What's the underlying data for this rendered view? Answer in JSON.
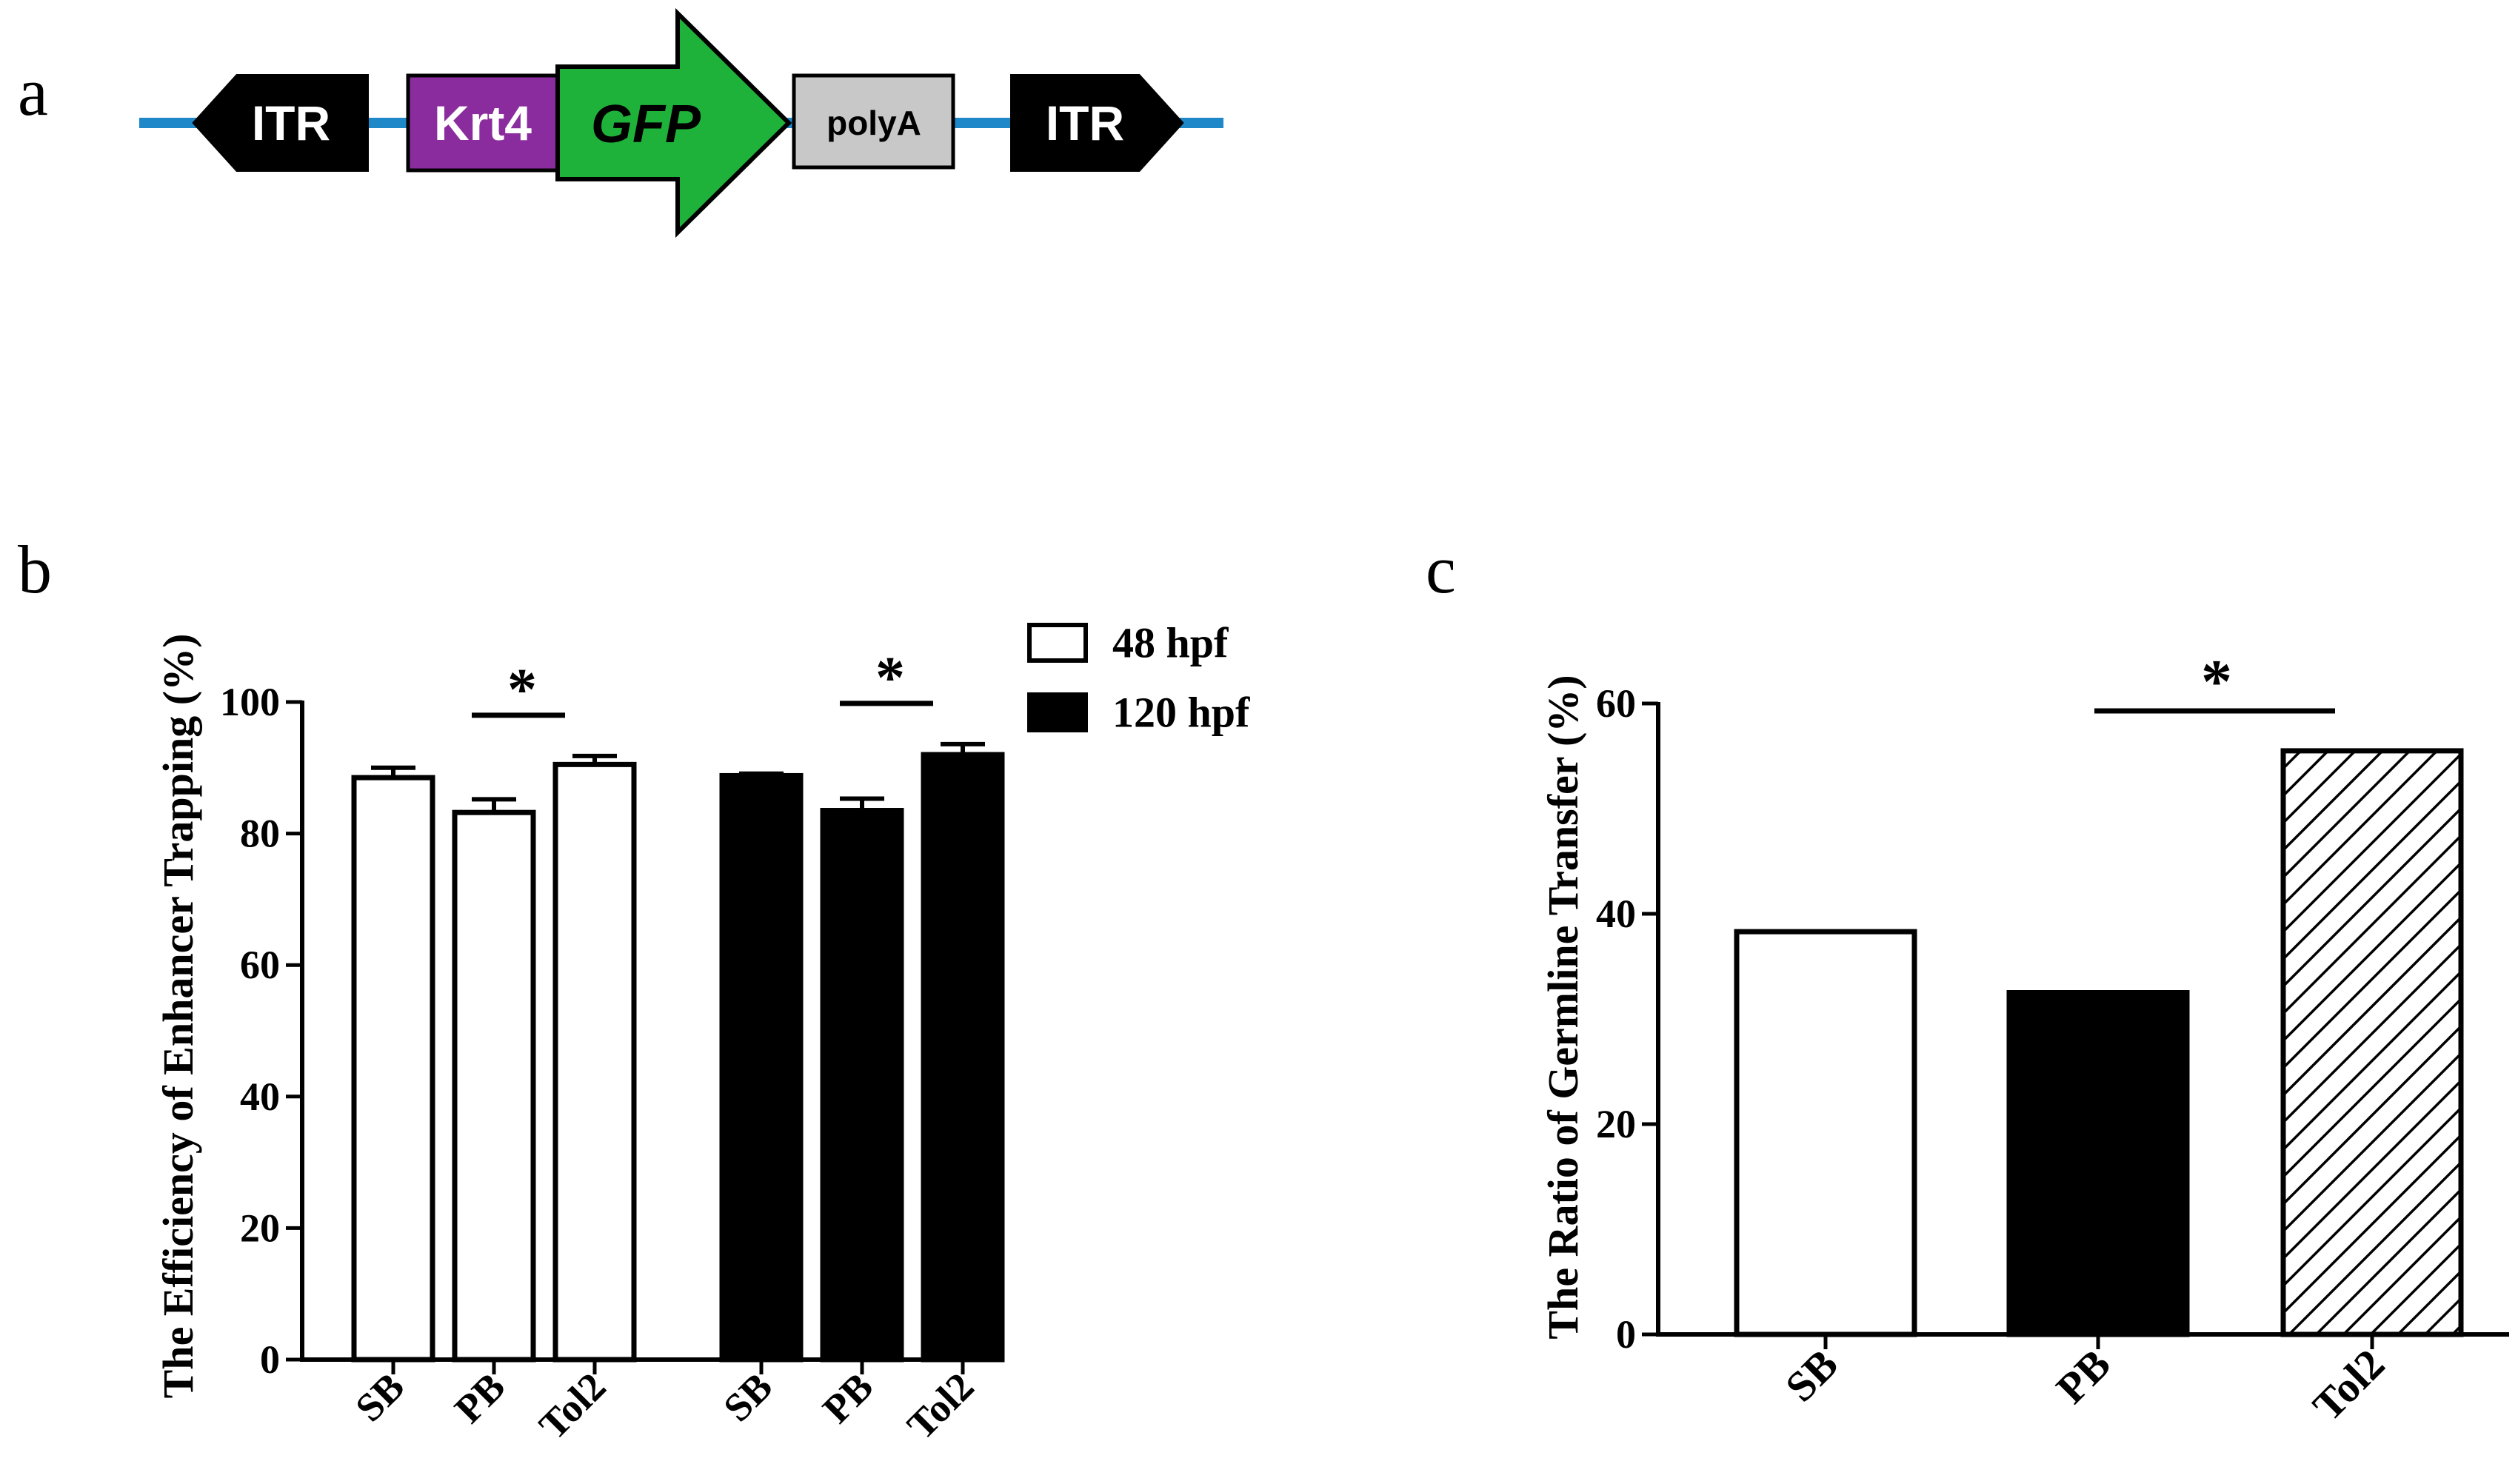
{
  "panel_labels": {
    "a": "a",
    "b": "b",
    "c": "c"
  },
  "construct": {
    "elements": [
      {
        "label": "ITR",
        "shape": "hexagon",
        "color": "#000000",
        "text_color": "#ffffff"
      },
      {
        "label": "Krt4",
        "shape": "box",
        "color": "#8b2c9e",
        "text_color": "#ffffff"
      },
      {
        "label": "GFP",
        "shape": "arrow",
        "color": "#1fb23a",
        "text_color": "#000000"
      },
      {
        "label": "polyA",
        "shape": "box",
        "color": "#c8c8c8",
        "text_color": "#000000"
      },
      {
        "label": "ITR",
        "shape": "hexagon",
        "color": "#000000",
        "text_color": "#ffffff"
      }
    ],
    "backbone_color": "#1e88c8"
  },
  "chart_data": [
    {
      "type": "bar",
      "panel": "b",
      "ylabel": "The Efficiency of Enhancer Trapping (%)",
      "xlabel": "",
      "categories": [
        "SB",
        "PB",
        "Tol2"
      ],
      "ylim": [
        0,
        100
      ],
      "yticks": [
        "0",
        "20",
        "40",
        "60",
        "80",
        "100"
      ],
      "series": [
        {
          "name": "48 hpf",
          "values": [
            88.5,
            83.2,
            90.5
          ],
          "errors": [
            1.5,
            2.0,
            1.3
          ],
          "fill": "#ffffff"
        },
        {
          "name": "120 hpf",
          "values": [
            88.8,
            83.5,
            92.0
          ],
          "errors": [
            0.3,
            1.8,
            1.6
          ],
          "fill": "#000000"
        }
      ],
      "significance": [
        {
          "series": "48 hpf",
          "from": "PB",
          "to": "Tol2",
          "label": "*"
        },
        {
          "series": "120 hpf",
          "from": "PB",
          "to": "Tol2",
          "label": "*"
        }
      ],
      "legend": {
        "position": "top-right",
        "entries": [
          "48 hpf",
          "120 hpf"
        ]
      },
      "grid": false
    },
    {
      "type": "bar",
      "panel": "c",
      "ylabel": "The Ratio of Germline Transfer (%)",
      "xlabel": "",
      "categories": [
        "SB",
        "PB",
        "Tol2"
      ],
      "values": [
        38.3,
        32.5,
        55.5
      ],
      "fills": [
        "white",
        "black",
        "hatched"
      ],
      "ylim": [
        0,
        60
      ],
      "yticks": [
        "0",
        "20",
        "40",
        "60"
      ],
      "significance": [
        {
          "from": "PB",
          "to": "Tol2",
          "label": "*"
        }
      ],
      "grid": false
    }
  ]
}
